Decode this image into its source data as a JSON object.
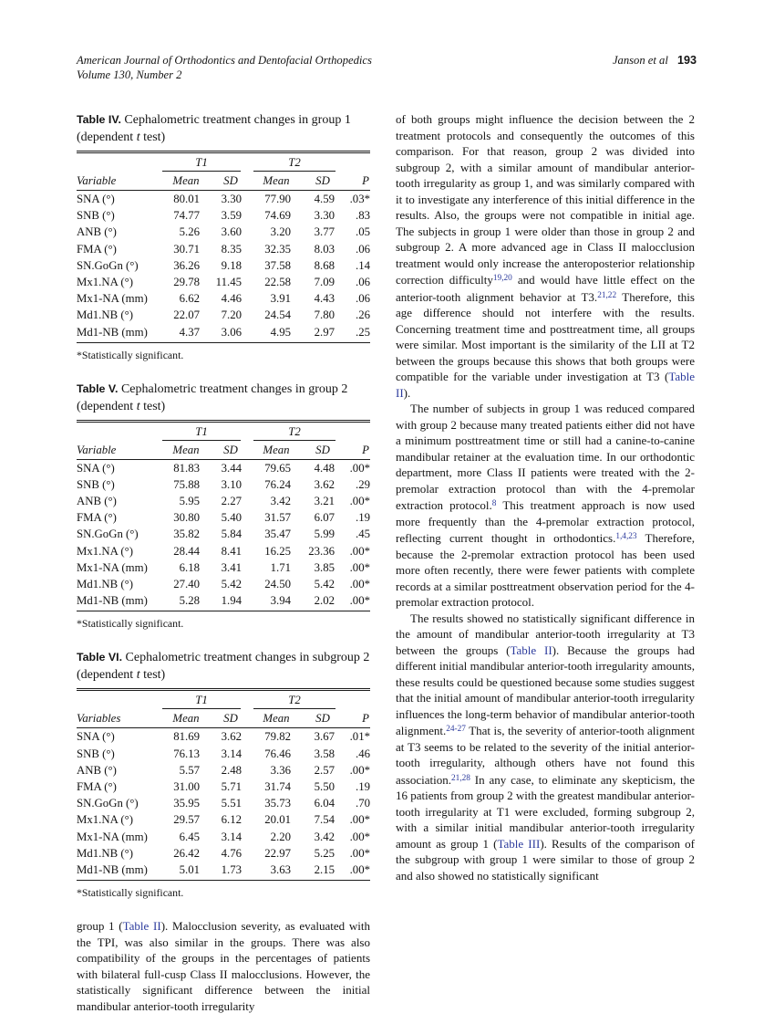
{
  "colors": {
    "link_blue": "#2b3a9c",
    "text": "#141414",
    "page_background": "#ffffff"
  },
  "header": {
    "journal": "American Journal of Orthodontics and Dentofacial Orthopedics",
    "volume": "Volume 130, Number 2",
    "authors": "Janson et al",
    "page_number": "193"
  },
  "tables": [
    {
      "caption": [
        {
          "t": "Table IV.",
          "s": "label"
        },
        {
          "t": " Cephalometric treatment changes in group 1 (dependent ",
          "s": "n"
        },
        {
          "t": "t",
          "s": "i"
        },
        {
          "t": " test)",
          "s": "n"
        }
      ],
      "group_headers": [
        "T1",
        "T2"
      ],
      "col_headers": [
        "Variable",
        "Mean",
        "SD",
        "Mean",
        "SD",
        "P"
      ],
      "rows": [
        [
          "SNA (°)",
          "80.01",
          "3.30",
          "77.90",
          "4.59",
          ".03*"
        ],
        [
          "SNB (°)",
          "74.77",
          "3.59",
          "74.69",
          "3.30",
          ".83"
        ],
        [
          "ANB (°)",
          "5.26",
          "3.60",
          "3.20",
          "3.77",
          ".05"
        ],
        [
          "FMA (°)",
          "30.71",
          "8.35",
          "32.35",
          "8.03",
          ".06"
        ],
        [
          "SN.GoGn (°)",
          "36.26",
          "9.18",
          "37.58",
          "8.68",
          ".14"
        ],
        [
          "Mx1.NA (°)",
          "29.78",
          "11.45",
          "22.58",
          "7.09",
          ".06"
        ],
        [
          "Mx1-NA (mm)",
          "6.62",
          "4.46",
          "3.91",
          "4.43",
          ".06"
        ],
        [
          "Md1.NB (°)",
          "22.07",
          "7.20",
          "24.54",
          "7.80",
          ".26"
        ],
        [
          "Md1-NB (mm)",
          "4.37",
          "3.06",
          "4.95",
          "2.97",
          ".25"
        ]
      ],
      "footnote": "*Statistically significant."
    },
    {
      "caption": [
        {
          "t": "Table V.",
          "s": "label"
        },
        {
          "t": " Cephalometric treatment changes in group 2 (dependent ",
          "s": "n"
        },
        {
          "t": "t",
          "s": "i"
        },
        {
          "t": " test)",
          "s": "n"
        }
      ],
      "group_headers": [
        "T1",
        "T2"
      ],
      "col_headers": [
        "Variable",
        "Mean",
        "SD",
        "Mean",
        "SD",
        "P"
      ],
      "rows": [
        [
          "SNA (°)",
          "81.83",
          "3.44",
          "79.65",
          "4.48",
          ".00*"
        ],
        [
          "SNB (°)",
          "75.88",
          "3.10",
          "76.24",
          "3.62",
          ".29"
        ],
        [
          "ANB (°)",
          "5.95",
          "2.27",
          "3.42",
          "3.21",
          ".00*"
        ],
        [
          "FMA (°)",
          "30.80",
          "5.40",
          "31.57",
          "6.07",
          ".19"
        ],
        [
          "SN.GoGn (°)",
          "35.82",
          "5.84",
          "35.47",
          "5.99",
          ".45"
        ],
        [
          "Mx1.NA (°)",
          "28.44",
          "8.41",
          "16.25",
          "23.36",
          ".00*"
        ],
        [
          "Mx1-NA (mm)",
          "6.18",
          "3.41",
          "1.71",
          "3.85",
          ".00*"
        ],
        [
          "Md1.NB (°)",
          "27.40",
          "5.42",
          "24.50",
          "5.42",
          ".00*"
        ],
        [
          "Md1-NB (mm)",
          "5.28",
          "1.94",
          "3.94",
          "2.02",
          ".00*"
        ]
      ],
      "footnote": "*Statistically significant."
    },
    {
      "caption": [
        {
          "t": "Table VI.",
          "s": "label"
        },
        {
          "t": " Cephalometric treatment changes in subgroup 2 (dependent ",
          "s": "n"
        },
        {
          "t": "t",
          "s": "i"
        },
        {
          "t": " test)",
          "s": "n"
        }
      ],
      "group_headers": [
        "T1",
        "T2"
      ],
      "col_headers": [
        "Variables",
        "Mean",
        "SD",
        "Mean",
        "SD",
        "P"
      ],
      "rows": [
        [
          "SNA (°)",
          "81.69",
          "3.62",
          "79.82",
          "3.67",
          ".01*"
        ],
        [
          "SNB (°)",
          "76.13",
          "3.14",
          "76.46",
          "3.58",
          ".46"
        ],
        [
          "ANB (°)",
          "5.57",
          "2.48",
          "3.36",
          "2.57",
          ".00*"
        ],
        [
          "FMA (°)",
          "31.00",
          "5.71",
          "31.74",
          "5.50",
          ".19"
        ],
        [
          "SN.GoGn (°)",
          "35.95",
          "5.51",
          "35.73",
          "6.04",
          ".70"
        ],
        [
          "Mx1.NA (°)",
          "29.57",
          "6.12",
          "20.01",
          "7.54",
          ".00*"
        ],
        [
          "Mx1-NA (mm)",
          "6.45",
          "3.14",
          "2.20",
          "3.42",
          ".00*"
        ],
        [
          "Md1.NB (°)",
          "26.42",
          "4.76",
          "22.97",
          "5.25",
          ".00*"
        ],
        [
          "Md1-NB (mm)",
          "5.01",
          "1.73",
          "3.63",
          "2.15",
          ".00*"
        ]
      ],
      "footnote": "*Statistically significant."
    }
  ],
  "left_paragraph": {
    "segments": [
      {
        "t": "group 1 (",
        "s": "n"
      },
      {
        "t": "Table II",
        "s": "link"
      },
      {
        "t": "). Malocclusion severity, as evaluated with the TPI, was also similar in the groups. There was also compatibility of the groups in the percentages of patients with bilateral full-cusp Class II malocclusions. However, the statistically significant difference between the initial mandibular anterior-tooth irregularity",
        "s": "n"
      }
    ]
  },
  "right_paragraphs": [
    {
      "indent": false,
      "segments": [
        {
          "t": "of both groups might influence the decision between the 2 treatment protocols and consequently the outcomes of this comparison. For that reason, group 2 was divided into subgroup 2, with a similar amount of mandibular anterior-tooth irregularity as group 1, and was similarly compared with it to investigate any interference of this initial difference in the results. Also, the groups were not compatible in initial age. The subjects in group 1 were older than those in group 2 and subgroup 2. A more advanced age in Class II malocclusion treatment would only increase the anteroposterior relationship correction difficulty",
          "s": "n"
        },
        {
          "t": "19,20",
          "s": "sup"
        },
        {
          "t": " and would have little effect on the anterior-tooth alignment behavior at T3.",
          "s": "n"
        },
        {
          "t": "21,22",
          "s": "sup"
        },
        {
          "t": " Therefore, this age difference should not interfere with the results. Concerning treatment time and posttreatment time, all groups were similar. Most important is the similarity of the LII at T2 between the groups because this shows that both groups were compatible for the variable under investigation at T3 (",
          "s": "n"
        },
        {
          "t": "Table II",
          "s": "link"
        },
        {
          "t": ").",
          "s": "n"
        }
      ]
    },
    {
      "indent": true,
      "segments": [
        {
          "t": "The number of subjects in group 1 was reduced compared with group 2 because many treated patients either did not have a minimum posttreatment time or still had a canine-to-canine mandibular retainer at the evaluation time. In our orthodontic department, more Class II patients were treated with the 2-premolar extraction protocol than with the 4-premolar extraction protocol.",
          "s": "n"
        },
        {
          "t": "8",
          "s": "sup"
        },
        {
          "t": " This treatment approach is now used more frequently than the 4-premolar extraction protocol, reflecting current thought in orthodontics.",
          "s": "n"
        },
        {
          "t": "1,4,23",
          "s": "sup"
        },
        {
          "t": " Therefore, because the 2-premolar extraction protocol has been used more often recently, there were fewer patients with complete records at a similar posttreatment observation period for the 4-premolar extraction protocol.",
          "s": "n"
        }
      ]
    },
    {
      "indent": true,
      "segments": [
        {
          "t": "The results showed no statistically significant difference in the amount of mandibular anterior-tooth irregularity at T3 between the groups (",
          "s": "n"
        },
        {
          "t": "Table II",
          "s": "link"
        },
        {
          "t": "). Because the groups had different initial mandibular anterior-tooth irregularity amounts, these results could be questioned because some studies suggest that the initial amount of mandibular anterior-tooth irregularity influences the long-term behavior of mandibular anterior-tooth alignment.",
          "s": "n"
        },
        {
          "t": "24-27",
          "s": "sup"
        },
        {
          "t": " That is, the severity of anterior-tooth alignment at T3 seems to be related to the severity of the initial anterior-tooth irregularity, although others have not found this association.",
          "s": "n"
        },
        {
          "t": "21,28",
          "s": "sup"
        },
        {
          "t": " In any case, to eliminate any skepticism, the 16 patients from group 2 with the greatest mandibular anterior-tooth irregularity at T1 were excluded, forming subgroup 2, with a similar initial mandibular anterior-tooth irregularity amount as group 1 (",
          "s": "n"
        },
        {
          "t": "Table III",
          "s": "link"
        },
        {
          "t": "). Results of the comparison of the subgroup with group 1 were similar to those of group 2 and also showed no statistically significant",
          "s": "n"
        }
      ]
    }
  ]
}
